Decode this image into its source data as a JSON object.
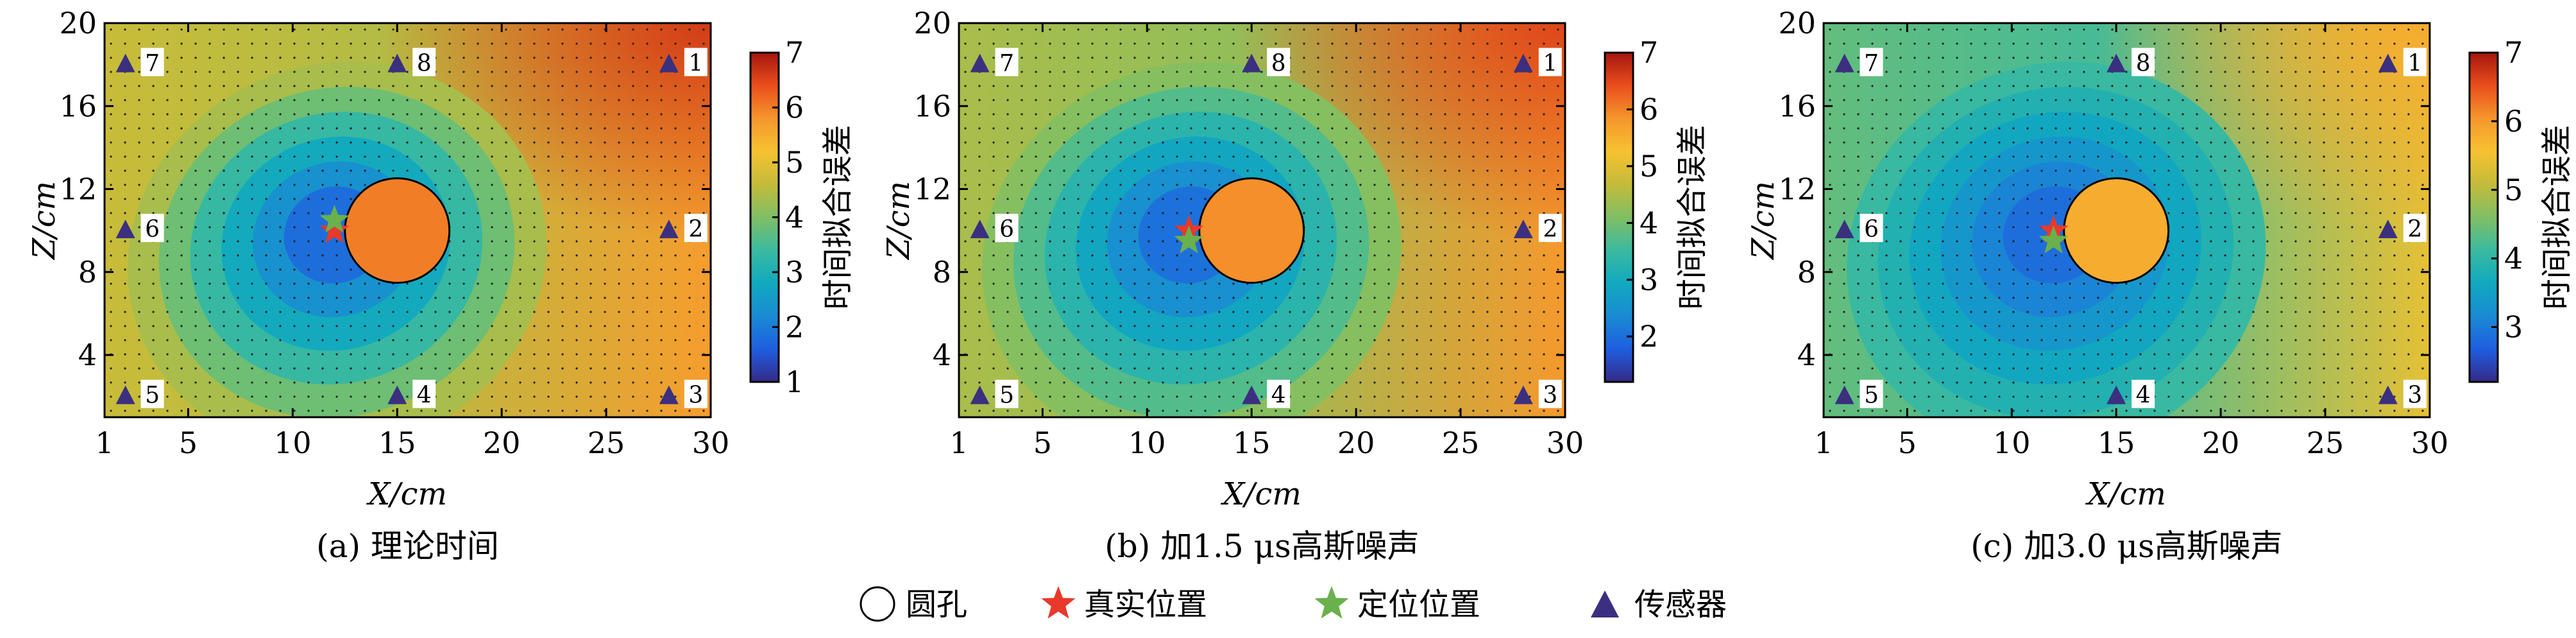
{
  "chart_data": [
    {
      "type": "heatmap",
      "caption": "(a) 理论时间",
      "xlabel": "X/cm",
      "ylabel": "Z/cm",
      "xlim": [
        1,
        30
      ],
      "ylim": [
        1,
        20
      ],
      "xticks": [
        1,
        5,
        10,
        15,
        20,
        25,
        30
      ],
      "yticks": [
        4,
        8,
        12,
        16,
        20
      ],
      "colorbar": {
        "label": "时间拟合误差",
        "ticks": [
          1,
          2,
          3,
          4,
          5,
          6,
          7
        ],
        "range": [
          1,
          7
        ]
      },
      "min_value": 1.3,
      "hole": {
        "x": 15,
        "z": 10,
        "r": 2.5,
        "value": 6.0
      },
      "true_position": {
        "x": 12,
        "z": 10
      },
      "located_position": {
        "x": 12,
        "z": 10.5
      },
      "corner_values": {
        "top_right": 6.6,
        "bottom_right": 4.8,
        "top_left": 4.4,
        "bottom_left": 4.9
      }
    },
    {
      "type": "heatmap",
      "caption": "(b) 加1.5 μs高斯噪声",
      "xlabel": "X/cm",
      "ylabel": "Z/cm",
      "xlim": [
        1,
        30
      ],
      "ylim": [
        1,
        20
      ],
      "xticks": [
        1,
        5,
        10,
        15,
        20,
        25,
        30
      ],
      "yticks": [
        4,
        8,
        12,
        16,
        20
      ],
      "colorbar": {
        "label": "时间拟合误差",
        "ticks": [
          2,
          3,
          4,
          5,
          6,
          7
        ],
        "range": [
          1.2,
          7
        ]
      },
      "min_value": 1.6,
      "hole": {
        "x": 15,
        "z": 10,
        "r": 2.5,
        "value": 5.9
      },
      "true_position": {
        "x": 12,
        "z": 10
      },
      "located_position": {
        "x": 12,
        "z": 9.5
      },
      "corner_values": {
        "top_right": 6.5,
        "bottom_right": 5.1,
        "top_left": 4.3,
        "bottom_left": 4.6
      }
    },
    {
      "type": "heatmap",
      "caption": "(c) 加3.0 μs高斯噪声",
      "xlabel": "X/cm",
      "ylabel": "Z/cm",
      "xlim": [
        1,
        30
      ],
      "ylim": [
        1,
        20
      ],
      "xticks": [
        1,
        5,
        10,
        15,
        20,
        25,
        30
      ],
      "yticks": [
        4,
        8,
        12,
        16,
        20
      ],
      "colorbar": {
        "label": "时间拟合误差",
        "ticks": [
          3,
          4,
          5,
          6,
          7
        ],
        "range": [
          2.2,
          7
        ]
      },
      "min_value": 2.6,
      "hole": {
        "x": 15,
        "z": 10,
        "r": 2.5,
        "value": 5.8
      },
      "true_position": {
        "x": 12,
        "z": 10
      },
      "located_position": {
        "x": 12,
        "z": 9.5
      },
      "corner_values": {
        "top_right": 5.8,
        "bottom_right": 5.0,
        "top_left": 4.3,
        "bottom_left": 4.5
      }
    }
  ],
  "sensors": [
    {
      "label": "1",
      "x": 28,
      "z": 18
    },
    {
      "label": "2",
      "x": 28,
      "z": 10
    },
    {
      "label": "3",
      "x": 28,
      "z": 2
    },
    {
      "label": "4",
      "x": 15,
      "z": 2
    },
    {
      "label": "5",
      "x": 2,
      "z": 2
    },
    {
      "label": "6",
      "x": 2,
      "z": 10
    },
    {
      "label": "7",
      "x": 2,
      "z": 18
    },
    {
      "label": "8",
      "x": 15,
      "z": 18
    }
  ],
  "legend": {
    "hole_label": "圆孔",
    "true_label": "真实位置",
    "located_label": "定位位置",
    "sensor_label": "传感器"
  },
  "colors": {
    "true_position": "#e8392b",
    "located_position": "#6ab04c",
    "sensor": "#3b2f7f",
    "colormap": [
      "#352a87",
      "#1f5ee0",
      "#1a8bd3",
      "#11a9bf",
      "#3bbaa0",
      "#80bf64",
      "#c4bb3a",
      "#f6c232",
      "#f5962c",
      "#e94e1c",
      "#a4160e"
    ]
  }
}
